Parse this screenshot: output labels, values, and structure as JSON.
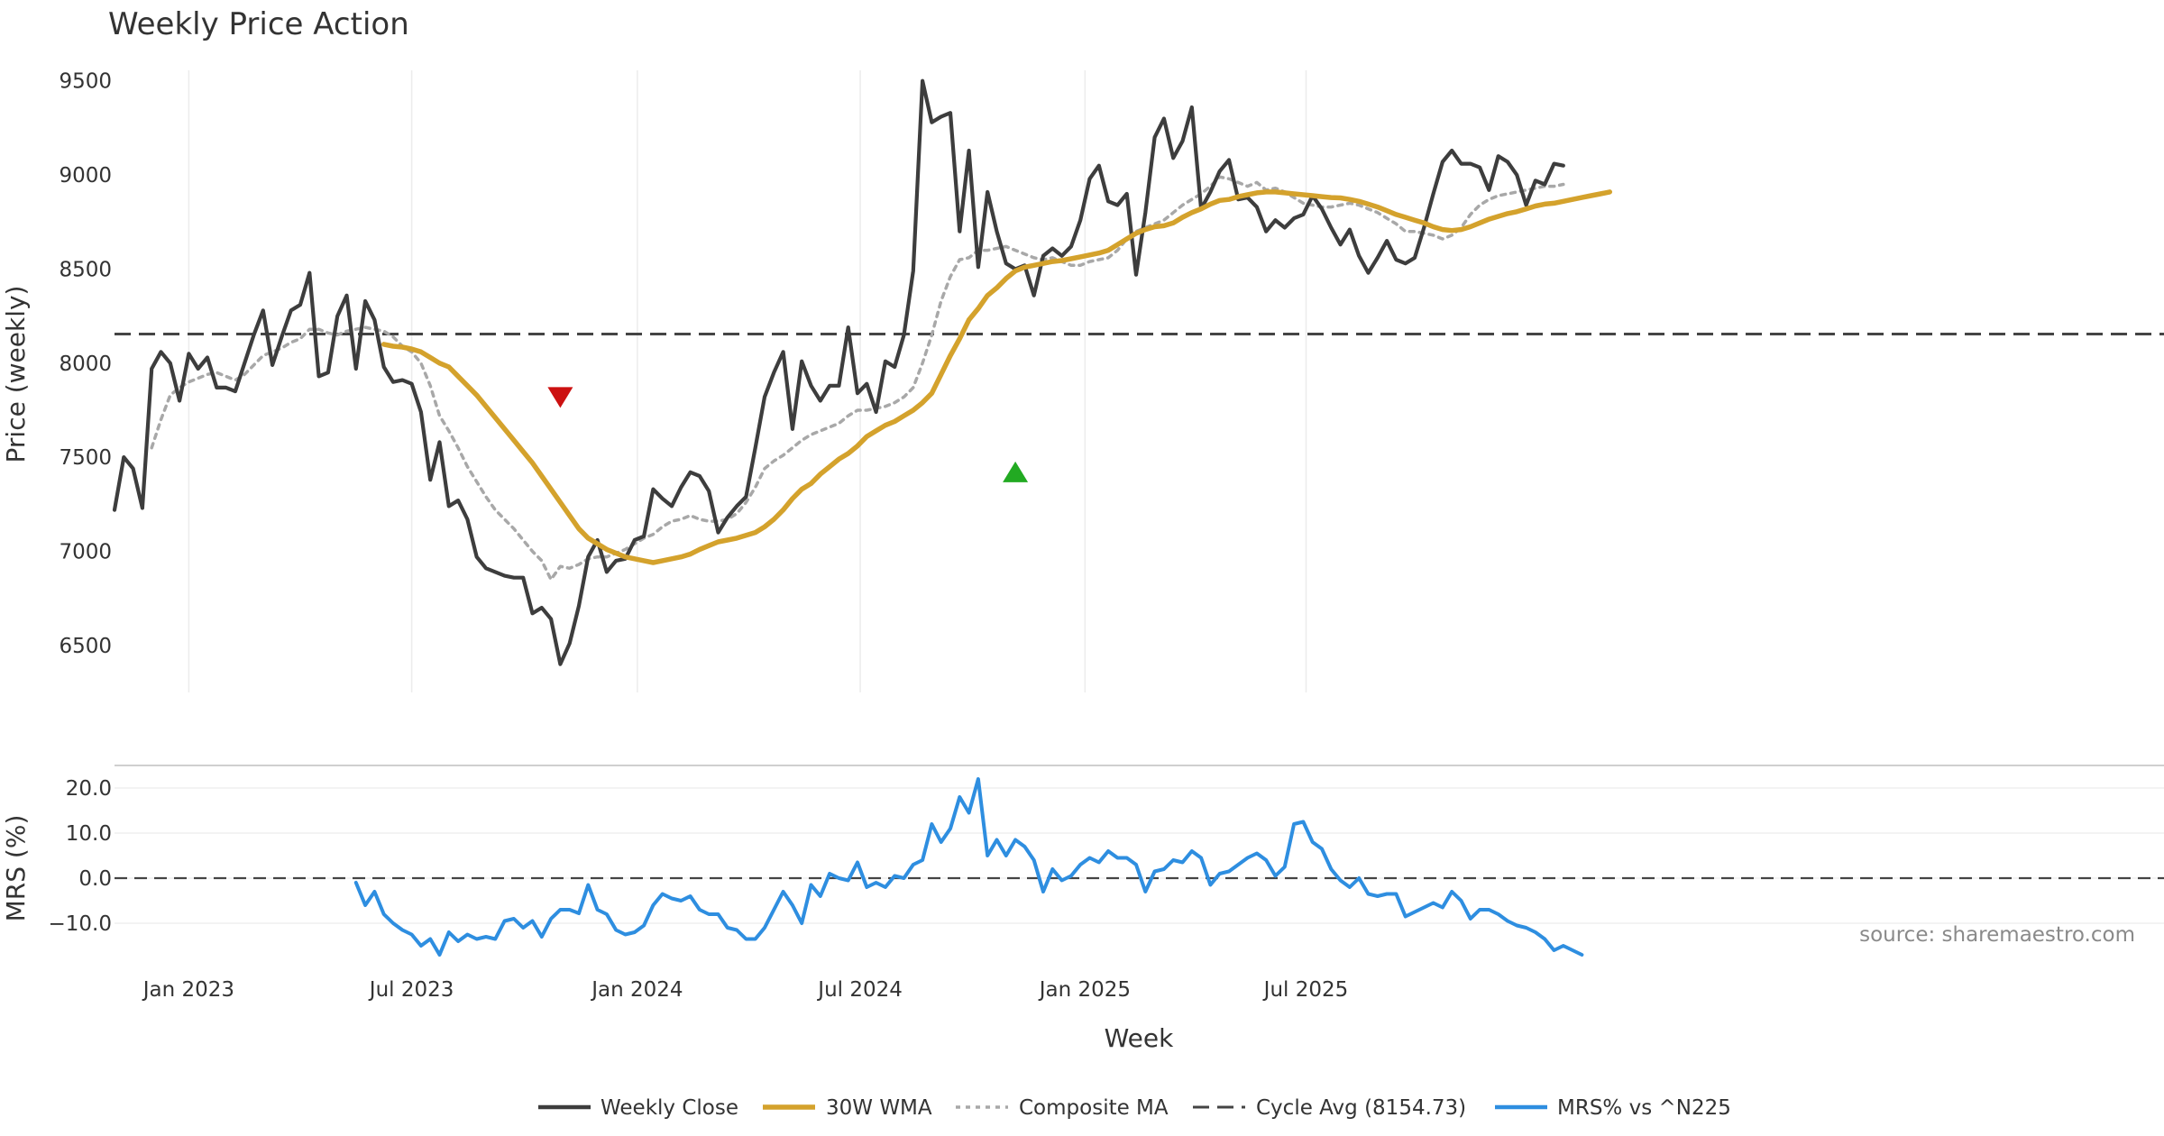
{
  "chart_data": {
    "type": "line",
    "title": "Weekly Price Action",
    "source": "source: sharemaestro.com",
    "colors": {
      "close": "#3d3d3d",
      "wma": "#d4a22c",
      "composite": "#a8a8a8",
      "cycle": "#444444",
      "mrs": "#2e8ee0",
      "bear": "#cc1111",
      "bull": "#22aa22"
    },
    "x_ticks": [
      "Jan 2023",
      "Jul 2023",
      "Jan 2024",
      "Jul 2024",
      "Jan 2025",
      "Jul 2025"
    ],
    "xlabel": "Week",
    "price_panel": {
      "ylabel": "Price (weekly)",
      "ylim": [
        6250,
        9700
      ],
      "y_ticks": [
        "6500",
        "7000",
        "7500",
        "8000",
        "8500",
        "9000",
        "9500"
      ],
      "grid": "vertical"
    },
    "mrs_panel": {
      "ylabel": "MRS (%)",
      "ylim": [
        -18,
        25
      ],
      "y_ticks": [
        "20.0",
        "10.0",
        "0.0",
        "−10.0"
      ],
      "zero_line": 0
    },
    "cycle_avg": 8154.73,
    "legend": [
      "Weekly Close",
      "30W WMA",
      "Composite MA",
      "Cycle Avg (8154.73)",
      "MRS% vs ^N225"
    ],
    "legend_position": "bottom",
    "markers": [
      {
        "type": "sell",
        "shape": "down-triangle",
        "x": 48,
        "y": 7820
      },
      {
        "type": "buy",
        "shape": "up-triangle",
        "x": 97,
        "y": 7420
      }
    ],
    "series": [
      {
        "name": "Weekly Close",
        "x_start": 0,
        "values": [
          7220,
          7500,
          7440,
          7230,
          7970,
          8060,
          8000,
          7800,
          8050,
          7970,
          8030,
          7870,
          7870,
          7850,
          8000,
          8150,
          8280,
          7990,
          8140,
          8280,
          8310,
          8480,
          7930,
          7950,
          8250,
          8360,
          7970,
          8330,
          8230,
          7980,
          7900,
          7910,
          7890,
          7740,
          7380,
          7580,
          7240,
          7270,
          7170,
          6970,
          6910,
          6890,
          6870,
          6860,
          6860,
          6670,
          6700,
          6640,
          6400,
          6510,
          6710,
          6970,
          7060,
          6890,
          6950,
          6960,
          7060,
          7080,
          7330,
          7280,
          7240,
          7340,
          7420,
          7400,
          7320,
          7100,
          7180,
          7240,
          7290,
          7550,
          7820,
          7950,
          8060,
          7650,
          8010,
          7880,
          7800,
          7880,
          7880,
          8190,
          7840,
          7890,
          7740,
          8010,
          7980,
          8150,
          8490,
          9500,
          9280,
          9310,
          9330,
          8700,
          9130,
          8510,
          8910,
          8700,
          8530,
          8500,
          8520,
          8360,
          8570,
          8610,
          8570,
          8620,
          8760,
          8980,
          9050,
          8860,
          8840,
          8900,
          8470,
          8800,
          9200,
          9300,
          9090,
          9180,
          9360,
          8820,
          8910,
          9020,
          9080,
          8870,
          8880,
          8830,
          8700,
          8760,
          8720,
          8770,
          8790,
          8890,
          8820,
          8720,
          8630,
          8710,
          8570,
          8480,
          8560,
          8650,
          8550,
          8530,
          8560,
          8720,
          8900,
          9070,
          9130,
          9060,
          9060,
          9040,
          8920,
          9100,
          9070,
          9000,
          8840,
          8970,
          8950,
          9060,
          9050
        ]
      },
      {
        "name": "30W WMA",
        "x_start": 29,
        "values": [
          8100,
          8090,
          8085,
          8075,
          8060,
          8030,
          8000,
          7980,
          7930,
          7880,
          7830,
          7770,
          7710,
          7650,
          7590,
          7530,
          7470,
          7400,
          7330,
          7260,
          7190,
          7120,
          7070,
          7040,
          7010,
          6990,
          6970,
          6960,
          6950,
          6940,
          6950,
          6960,
          6970,
          6985,
          7010,
          7030,
          7050,
          7060,
          7070,
          7085,
          7100,
          7130,
          7170,
          7220,
          7280,
          7330,
          7360,
          7410,
          7450,
          7490,
          7520,
          7560,
          7610,
          7640,
          7670,
          7690,
          7720,
          7750,
          7790,
          7840,
          7940,
          8040,
          8130,
          8230,
          8290,
          8360,
          8400,
          8450,
          8490,
          8510,
          8520,
          8530,
          8540,
          8545,
          8555,
          8565,
          8575,
          8585,
          8600,
          8630,
          8660,
          8690,
          8710,
          8725,
          8730,
          8745,
          8775,
          8800,
          8820,
          8845,
          8865,
          8870,
          8885,
          8895,
          8905,
          8910,
          8910,
          8905,
          8900,
          8895,
          8890,
          8885,
          8880,
          8878,
          8870,
          8860,
          8845,
          8830,
          8810,
          8790,
          8775,
          8760,
          8745,
          8725,
          8710,
          8705,
          8710,
          8725,
          8745,
          8765,
          8780,
          8795,
          8805,
          8820,
          8835,
          8845,
          8850,
          8860,
          8870,
          8880,
          8890,
          8900,
          8910
        ]
      },
      {
        "name": "Composite MA",
        "x_start": 4,
        "values": [
          7550,
          7700,
          7830,
          7870,
          7900,
          7920,
          7940,
          7950,
          7930,
          7910,
          7940,
          7990,
          8040,
          8060,
          8080,
          8110,
          8130,
          8180,
          8180,
          8160,
          8150,
          8170,
          8180,
          8190,
          8180,
          8170,
          8140,
          8090,
          8060,
          8000,
          7880,
          7720,
          7640,
          7550,
          7450,
          7370,
          7290,
          7220,
          7170,
          7120,
          7060,
          7000,
          6950,
          6850,
          6920,
          6910,
          6930,
          6960,
          6970,
          6970,
          6990,
          7010,
          7040,
          7070,
          7090,
          7130,
          7160,
          7170,
          7190,
          7170,
          7160,
          7160,
          7170,
          7200,
          7260,
          7340,
          7440,
          7480,
          7510,
          7550,
          7590,
          7620,
          7640,
          7660,
          7680,
          7720,
          7750,
          7750,
          7760,
          7770,
          7790,
          7820,
          7870,
          8000,
          8150,
          8330,
          8460,
          8550,
          8560,
          8600,
          8600,
          8610,
          8620,
          8600,
          8580,
          8560,
          8550,
          8560,
          8540,
          8520,
          8520,
          8540,
          8550,
          8560,
          8600,
          8660,
          8700,
          8720,
          8740,
          8760,
          8800,
          8840,
          8870,
          8900,
          8940,
          8990,
          8980,
          8960,
          8940,
          8960,
          8920,
          8930,
          8910,
          8880,
          8850,
          8840,
          8830,
          8830,
          8840,
          8850,
          8840,
          8820,
          8800,
          8770,
          8740,
          8700,
          8700,
          8690,
          8680,
          8660,
          8680,
          8720,
          8790,
          8840,
          8870,
          8890,
          8900,
          8910,
          8920,
          8930,
          8940,
          8940,
          8950
        ]
      },
      {
        "name": "MRS% vs ^N225",
        "x_start": 26,
        "values": [
          -1,
          -6,
          -3,
          -8,
          -10,
          -11.5,
          -12.5,
          -15,
          -13.5,
          -17,
          -12,
          -14,
          -12.5,
          -13.5,
          -13,
          -13.5,
          -9.5,
          -9,
          -11,
          -9.5,
          -13,
          -9,
          -7,
          -7,
          -7.8,
          -1.5,
          -7,
          -8,
          -11.5,
          -12.5,
          -12,
          -10.5,
          -6,
          -3.5,
          -4.5,
          -5,
          -4,
          -7,
          -8,
          -8,
          -11,
          -11.5,
          -13.5,
          -13.5,
          -11,
          -7,
          -3,
          -6,
          -10,
          -1.5,
          -4,
          1,
          0,
          -0.5,
          3.5,
          -2,
          -1,
          -2,
          0.5,
          0,
          3,
          4,
          12,
          8,
          11,
          18,
          14.5,
          22,
          5,
          8.5,
          5,
          8.5,
          7,
          4,
          -3,
          2,
          -0.5,
          0.5,
          3,
          4.5,
          3.5,
          6,
          4.5,
          4.5,
          3,
          -3,
          1.5,
          2,
          4,
          3.5,
          6,
          4.5,
          -1.5,
          1,
          1.5,
          3,
          4.5,
          5.5,
          4,
          0.5,
          2.5,
          12,
          12.5,
          8,
          6.5,
          2,
          -0.5,
          -2,
          0,
          -3.5,
          -4,
          -3.5,
          -3.5,
          -8.5,
          -7.5,
          -6.5,
          -5.5,
          -6.5,
          -3,
          -5,
          -9,
          -7,
          -7,
          -8,
          -9.5,
          -10.5,
          -11,
          -12,
          -13.5,
          -16,
          -15,
          -16,
          -17
        ]
      }
    ]
  }
}
